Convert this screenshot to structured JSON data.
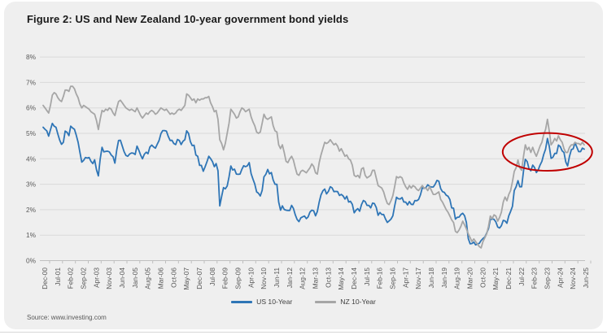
{
  "header": {
    "title": "Figure 2: US and New Zealand 10-year government bond yields"
  },
  "footer": {
    "source": "Source: www.investing.com"
  },
  "chart_data": {
    "type": "line",
    "title": "Figure 2: US and New Zealand 10-year government bond yields",
    "xlabel": "",
    "ylabel": "",
    "ylim": [
      0,
      8
    ],
    "y_tick_suffix": "%",
    "grid": true,
    "legend_position": "bottom",
    "colors": {
      "grid": "#dadada",
      "axis": "#bfbfbf",
      "tick_text": "#595959"
    },
    "x_tick_step": 7,
    "x_tick_labels": [
      "Dec-00",
      "Jul-01",
      "Feb-02",
      "Sep-02",
      "Apr-03",
      "Nov-03",
      "Jun-04",
      "Jan-05",
      "Aug-05",
      "Mar-06",
      "Oct-06",
      "May-07",
      "Dec-07",
      "Jul-08",
      "Feb-09",
      "Sep-09",
      "Apr-10",
      "Nov-10",
      "Jun-11",
      "Jan-12",
      "Aug-12",
      "Mar-13",
      "Oct-13",
      "May-14",
      "Dec-14",
      "Jul-15",
      "Feb-16",
      "Sep-16",
      "Apr-17",
      "Nov-17",
      "Jun-18",
      "Jan-19",
      "Aug-19",
      "Mar-20",
      "Oct-20",
      "May-21",
      "Dec-21",
      "Jul-22",
      "Feb-23",
      "Sep-23",
      "Apr-24",
      "Nov-24",
      "Jun-25"
    ],
    "x_start": "Dec-00",
    "x_end": "Jun-25",
    "x_frequency": "monthly",
    "series": [
      {
        "name": "US 10-Year",
        "color": "#2E75B6",
        "values": [
          5.24,
          5.16,
          5.1,
          4.89,
          5.14,
          5.39,
          5.28,
          5.24,
          4.97,
          4.73,
          4.57,
          4.65,
          5.09,
          5.04,
          4.91,
          5.28,
          5.21,
          5.16,
          4.93,
          4.65,
          4.26,
          3.87,
          3.94,
          4.05,
          4.03,
          4.05,
          3.9,
          3.81,
          3.96,
          3.57,
          3.33,
          3.98,
          4.45,
          4.27,
          4.29,
          4.3,
          4.27,
          4.15,
          4.08,
          3.83,
          4.35,
          4.72,
          4.73,
          4.5,
          4.28,
          4.13,
          4.1,
          4.19,
          4.23,
          4.22,
          4.17,
          4.5,
          4.34,
          4.14,
          4.0,
          4.18,
          4.26,
          4.2,
          4.46,
          4.54,
          4.47,
          4.42,
          4.57,
          4.72,
          4.99,
          5.11,
          5.11,
          5.09,
          4.88,
          4.72,
          4.73,
          4.6,
          4.56,
          4.76,
          4.72,
          4.56,
          4.69,
          4.75,
          5.1,
          5.0,
          4.67,
          4.52,
          4.53,
          4.15,
          4.1,
          3.74,
          3.74,
          3.51,
          3.68,
          3.88,
          4.1,
          4.01,
          3.89,
          3.69,
          3.81,
          3.53,
          2.15,
          2.52,
          2.87,
          2.82,
          2.93,
          3.29,
          3.72,
          3.56,
          3.59,
          3.4,
          3.39,
          3.4,
          3.59,
          3.73,
          3.69,
          3.73,
          3.85,
          3.42,
          3.2,
          3.01,
          2.7,
          2.65,
          2.54,
          2.76,
          3.29,
          3.39,
          3.58,
          3.41,
          3.46,
          3.17,
          3.0,
          3.0,
          2.3,
          1.98,
          2.15,
          2.01,
          1.98,
          1.97,
          1.97,
          2.17,
          2.05,
          1.8,
          1.62,
          1.53,
          1.68,
          1.72,
          1.75,
          1.65,
          1.72,
          1.91,
          1.98,
          1.96,
          1.76,
          1.93,
          2.3,
          2.58,
          2.74,
          2.81,
          2.62,
          2.72,
          2.9,
          2.86,
          2.71,
          2.72,
          2.71,
          2.56,
          2.6,
          2.54,
          2.42,
          2.53,
          2.3,
          2.33,
          2.21,
          1.88,
          1.98,
          2.04,
          1.94,
          2.2,
          2.36,
          2.32,
          2.17,
          2.17,
          2.07,
          2.26,
          2.24,
          2.09,
          1.78,
          1.89,
          1.81,
          1.81,
          1.64,
          1.5,
          1.56,
          1.63,
          1.76,
          2.14,
          2.49,
          2.43,
          2.42,
          2.48,
          2.3,
          2.3,
          2.19,
          2.32,
          2.21,
          2.2,
          2.36,
          2.35,
          2.4,
          2.58,
          2.86,
          2.84,
          2.87,
          2.98,
          2.91,
          2.89,
          2.89,
          3.0,
          3.15,
          3.12,
          2.83,
          2.71,
          2.68,
          2.57,
          2.53,
          2.4,
          2.07,
          2.06,
          1.63,
          1.7,
          1.71,
          1.81,
          1.86,
          1.76,
          1.5,
          0.87,
          0.66,
          0.67,
          0.73,
          0.62,
          0.65,
          0.68,
          0.79,
          0.87,
          0.93,
          1.08,
          1.26,
          1.61,
          1.64,
          1.62,
          1.52,
          1.32,
          1.28,
          1.37,
          1.58,
          1.56,
          1.47,
          1.76,
          1.93,
          2.13,
          2.75,
          2.9,
          3.14,
          2.9,
          2.9,
          3.52,
          3.98,
          3.89,
          3.62,
          3.53,
          3.75,
          3.66,
          3.46,
          3.57,
          3.75,
          3.9,
          4.17,
          4.38,
          4.8,
          4.5,
          4.02,
          4.06,
          4.21,
          4.21,
          4.54,
          4.48,
          4.31,
          4.25,
          3.87,
          3.72,
          4.1,
          4.36,
          4.39,
          4.63,
          4.45,
          4.28,
          4.28,
          4.42,
          4.38
        ]
      },
      {
        "name": "NZ 10-Year",
        "color": "#A6A6A6",
        "values": [
          6.1,
          6.0,
          5.9,
          5.8,
          6.1,
          6.5,
          6.6,
          6.55,
          6.4,
          6.3,
          6.25,
          6.45,
          6.7,
          6.7,
          6.65,
          6.85,
          6.85,
          6.75,
          6.55,
          6.4,
          6.15,
          6.0,
          6.1,
          6.05,
          6.0,
          5.95,
          5.85,
          5.8,
          5.75,
          5.5,
          5.15,
          5.55,
          5.9,
          5.85,
          5.95,
          5.9,
          6.0,
          5.95,
          5.8,
          5.7,
          6.0,
          6.25,
          6.3,
          6.2,
          6.1,
          6.0,
          5.95,
          5.9,
          5.95,
          5.9,
          5.85,
          6.0,
          5.85,
          5.7,
          5.6,
          5.7,
          5.8,
          5.75,
          5.85,
          5.9,
          5.85,
          5.75,
          5.8,
          5.9,
          6.0,
          5.95,
          5.9,
          5.95,
          5.85,
          5.75,
          5.8,
          5.75,
          5.8,
          5.9,
          5.95,
          5.9,
          6.0,
          6.1,
          6.55,
          6.5,
          6.4,
          6.3,
          6.35,
          6.2,
          6.35,
          6.3,
          6.35,
          6.35,
          6.4,
          6.4,
          6.45,
          6.2,
          6.05,
          5.85,
          5.9,
          5.55,
          4.75,
          4.6,
          4.35,
          4.6,
          5.0,
          5.4,
          5.95,
          5.85,
          5.75,
          5.6,
          5.65,
          5.85,
          6.0,
          5.95,
          5.85,
          5.9,
          5.95,
          5.65,
          5.45,
          5.3,
          5.05,
          5.0,
          5.05,
          5.4,
          5.75,
          5.6,
          5.55,
          5.6,
          5.65,
          5.3,
          5.1,
          5.05,
          4.55,
          4.4,
          4.55,
          4.25,
          3.9,
          3.85,
          4.0,
          4.1,
          3.95,
          3.65,
          3.4,
          3.35,
          3.5,
          3.55,
          3.5,
          3.45,
          3.55,
          3.65,
          3.8,
          3.7,
          3.45,
          3.4,
          3.85,
          4.15,
          4.4,
          4.65,
          4.6,
          4.65,
          4.75,
          4.65,
          4.55,
          4.6,
          4.5,
          4.3,
          4.4,
          4.25,
          4.1,
          4.15,
          4.0,
          3.95,
          3.75,
          3.35,
          3.3,
          3.35,
          3.25,
          3.6,
          3.65,
          3.35,
          3.25,
          3.3,
          3.35,
          3.55,
          3.55,
          3.25,
          2.95,
          2.9,
          2.85,
          2.7,
          2.45,
          2.25,
          2.2,
          2.35,
          2.55,
          2.9,
          3.3,
          3.25,
          3.3,
          3.25,
          3.05,
          2.9,
          2.8,
          2.95,
          2.85,
          2.95,
          2.9,
          2.8,
          2.75,
          2.85,
          2.95,
          2.85,
          2.85,
          2.75,
          2.9,
          2.75,
          2.6,
          2.6,
          2.65,
          2.7,
          2.4,
          2.3,
          2.15,
          2.0,
          1.9,
          1.75,
          1.6,
          1.5,
          1.15,
          1.1,
          1.2,
          1.35,
          1.55,
          1.4,
          1.25,
          1.05,
          0.9,
          0.75,
          0.85,
          0.75,
          0.65,
          0.55,
          0.5,
          0.75,
          0.9,
          1.05,
          1.35,
          1.75,
          1.65,
          1.8,
          1.75,
          1.55,
          1.7,
          1.9,
          2.3,
          2.5,
          2.35,
          2.6,
          2.75,
          3.1,
          3.5,
          3.65,
          3.95,
          3.65,
          3.55,
          4.1,
          4.55,
          4.35,
          4.45,
          4.25,
          4.45,
          4.25,
          4.1,
          4.3,
          4.5,
          4.65,
          4.95,
          5.15,
          5.55,
          5.1,
          4.55,
          4.65,
          4.8,
          4.7,
          4.9,
          4.75,
          4.65,
          4.4,
          4.25,
          4.25,
          4.45,
          4.55,
          4.55,
          4.65,
          4.6,
          4.6,
          4.55,
          4.65,
          4.55
        ]
      }
    ],
    "annotation": {
      "type": "ellipse",
      "description": "red ellipse highlighting 2022-2025 convergence of US and NZ yields around 4-5%",
      "color": "#C00000",
      "center_month_index": 274,
      "center_value": 4.27,
      "radius_months": 24.3,
      "radius_value": 0.74
    }
  },
  "legend": {
    "items": [
      "US 10-Year",
      "NZ 10-Year"
    ]
  }
}
